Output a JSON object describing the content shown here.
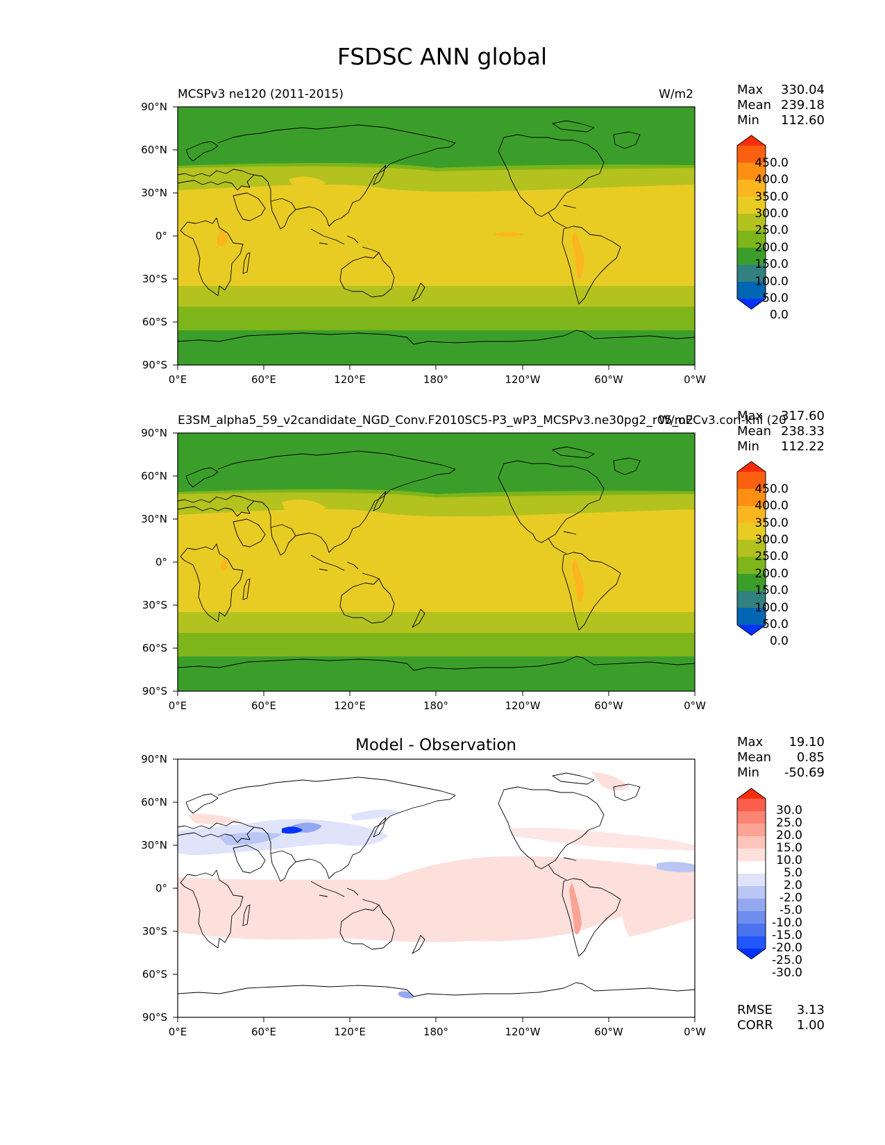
{
  "title": "FSDSC ANN global",
  "lat_labels": [
    "90°N",
    "60°N",
    "30°N",
    "0°",
    "30°S",
    "60°S",
    "90°S"
  ],
  "lon_labels": [
    "0°E",
    "60°E",
    "120°E",
    "180°",
    "120°W",
    "60°W",
    "0°W"
  ],
  "colors": {
    "land_outline": "#000000",
    "field_levels": [
      "#0033ff",
      "#0066b3",
      "#338080",
      "#3c9e2a",
      "#7eb51a",
      "#b3c21f",
      "#e8cc24",
      "#fbb61f",
      "#fd8f12",
      "#fb6010",
      "#ff2d0a"
    ],
    "diff_levels": [
      "#0033ff",
      "#2257ff",
      "#4a73ee",
      "#6d8eed",
      "#93a8ef",
      "#bac6f3",
      "#dfe4fb",
      "#ffffff",
      "#fde0dc",
      "#fdc4bc",
      "#fca394",
      "#fb8472",
      "#f95f4c",
      "#ff2d0a"
    ]
  },
  "panels": [
    {
      "left_title": "MCSPv3 ne120 (2011-2015)",
      "units": "W/m2",
      "stats": [
        {
          "label": "Max",
          "value": "330.04"
        },
        {
          "label": "Mean",
          "value": "239.18"
        },
        {
          "label": "Min",
          "value": "112.60"
        }
      ],
      "colorbar_labels": [
        "450.0",
        "400.0",
        "350.0",
        "300.0",
        "250.0",
        "200.0",
        "150.0",
        "100.0",
        "50.0",
        "0.0"
      ]
    },
    {
      "left_title": "E3SM_alpha5_59_v2candidate_NGD_Conv.F2010SC5-P3_wP3_MCSPv3.ne30pg2_r05_oECv3.cori-knl (20",
      "units": "W/m2",
      "stats": [
        {
          "label": "Max",
          "value": "317.60"
        },
        {
          "label": "Mean",
          "value": "238.33"
        },
        {
          "label": "Min",
          "value": "112.22"
        }
      ],
      "colorbar_labels": [
        "450.0",
        "400.0",
        "350.0",
        "300.0",
        "250.0",
        "200.0",
        "150.0",
        "100.0",
        "50.0",
        "0.0"
      ]
    },
    {
      "center_title": "Model - Observation",
      "stats": [
        {
          "label": "Max",
          "value": "19.10"
        },
        {
          "label": "Mean",
          "value": "0.85"
        },
        {
          "label": "Min",
          "value": "-50.69"
        }
      ],
      "colorbar_labels": [
        "30.0",
        "25.0",
        "20.0",
        "15.0",
        "10.0",
        "5.0",
        "2.0",
        "-2.0",
        "-5.0",
        "-10.0",
        "-15.0",
        "-20.0",
        "-25.0",
        "-30.0"
      ],
      "metrics": [
        {
          "label": "RMSE",
          "value": "3.13"
        },
        {
          "label": "CORR",
          "value": "1.00"
        }
      ]
    }
  ]
}
